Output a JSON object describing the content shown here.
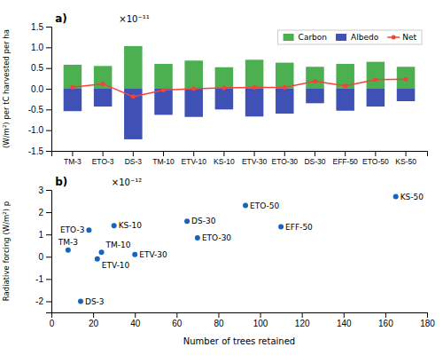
{
  "chart_data": [
    {
      "type": "bar",
      "annotations": [
        "a)",
        "×10⁻¹¹"
      ],
      "ylabel": "(W/m²) per tC harvested per ha",
      "categories": [
        "TM-3",
        "ETO-3",
        "DS-3",
        "TM-10",
        "ETV-10",
        "KS-10",
        "ETV-30",
        "ETO-30",
        "DS-30",
        "EFF-50",
        "ETO-50",
        "KS-50"
      ],
      "series": [
        {
          "name": "Carbon",
          "type": "bar",
          "color": "#4caf50",
          "values": [
            0.58,
            0.55,
            1.03,
            0.6,
            0.68,
            0.52,
            0.7,
            0.63,
            0.53,
            0.6,
            0.65,
            0.53
          ]
        },
        {
          "name": "Albedo",
          "type": "bar",
          "color": "#3f51b5",
          "values": [
            -0.54,
            -0.43,
            -1.22,
            -0.63,
            -0.68,
            -0.5,
            -0.67,
            -0.6,
            -0.35,
            -0.53,
            -0.43,
            -0.3
          ]
        },
        {
          "name": "Net",
          "type": "line",
          "marker": "circle",
          "color": "#f44336",
          "values": [
            0.04,
            0.12,
            -0.19,
            -0.03,
            0.0,
            0.02,
            0.03,
            0.03,
            0.18,
            0.07,
            0.22,
            0.23
          ]
        }
      ],
      "ylim": [
        -1.5,
        1.5
      ],
      "yticks": [
        -1.5,
        {
          "value": -1.0,
          "label": "-1.0"
        },
        -0.5,
        {
          "value": 0.0,
          "label": "0.0"
        },
        0.5,
        {
          "value": 1.0,
          "label": "1.0"
        },
        1.5
      ],
      "legend": "upper right"
    },
    {
      "type": "scatter",
      "annotations": [
        "b)",
        "×10⁻¹²"
      ],
      "xlabel": "Number of trees retained",
      "ylabel": "Radiative forcing (W/m²) p",
      "x": [
        8,
        18,
        14,
        24,
        22,
        30,
        40,
        70,
        65,
        110,
        93,
        165
      ],
      "values": [
        0.3,
        1.2,
        -2.0,
        0.2,
        -0.1,
        1.4,
        0.1,
        0.85,
        1.6,
        1.35,
        2.3,
        2.7
      ],
      "labels": [
        "TM-3",
        "ETO-3",
        "DS-3",
        "TM-10",
        "ETV-10",
        "KS-10",
        "ETV-30",
        "ETO-30",
        "DS-30",
        "EFF-50",
        "ETO-50",
        "KS-50"
      ],
      "color": "#1565c0",
      "xlim": [
        0,
        180
      ],
      "xticks": [
        0,
        20,
        40,
        60,
        80,
        100,
        120,
        140,
        160,
        180
      ],
      "ylim": [
        -2.5,
        3.0
      ],
      "yticks": [
        -2,
        -1,
        0,
        1,
        2,
        3
      ]
    }
  ]
}
